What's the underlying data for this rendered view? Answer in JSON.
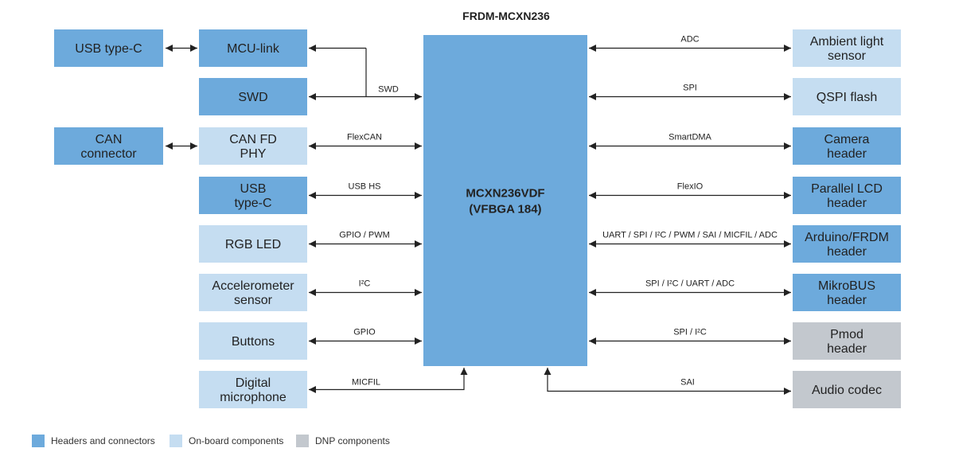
{
  "title": "FRDM-MCXN236",
  "colors": {
    "header": "#6DAADC",
    "onboard": "#C5DDF1",
    "dnp": "#C3C8CE",
    "chip": "#6DAADC"
  },
  "chip": {
    "lines": [
      "MCXN236VDF",
      "(VFBGA 184)"
    ]
  },
  "outer_left": [
    {
      "lines": [
        "USB type-C"
      ],
      "kind": "header",
      "row": 0
    },
    {
      "lines": [
        "CAN",
        "connector"
      ],
      "kind": "header",
      "row": 2
    }
  ],
  "left": [
    {
      "lines": [
        "MCU-link"
      ],
      "kind": "header",
      "bus": ""
    },
    {
      "lines": [
        "SWD"
      ],
      "kind": "header",
      "bus": "SWD"
    },
    {
      "lines": [
        "CAN FD",
        "PHY"
      ],
      "kind": "onboard",
      "bus": "FlexCAN"
    },
    {
      "lines": [
        "USB",
        "type-C"
      ],
      "kind": "header",
      "bus": "USB HS"
    },
    {
      "lines": [
        "RGB LED"
      ],
      "kind": "onboard",
      "bus": "GPIO / PWM"
    },
    {
      "lines": [
        "Accelerometer",
        "sensor"
      ],
      "kind": "onboard",
      "bus": "I²C"
    },
    {
      "lines": [
        "Buttons"
      ],
      "kind": "onboard",
      "bus": "GPIO"
    },
    {
      "lines": [
        "Digital",
        "microphone"
      ],
      "kind": "onboard",
      "bus": "MICFIL"
    }
  ],
  "right": [
    {
      "lines": [
        "Ambient light",
        "sensor"
      ],
      "kind": "onboard",
      "bus": "ADC"
    },
    {
      "lines": [
        "QSPI flash"
      ],
      "kind": "onboard",
      "bus": "SPI"
    },
    {
      "lines": [
        "Camera",
        "header"
      ],
      "kind": "header",
      "bus": "SmartDMA"
    },
    {
      "lines": [
        "Parallel LCD",
        "header"
      ],
      "kind": "header",
      "bus": "FlexIO"
    },
    {
      "lines": [
        "Arduino/FRDM",
        "header"
      ],
      "kind": "header",
      "bus": "UART / SPI / I²C / PWM / SAI / MICFIL / ADC"
    },
    {
      "lines": [
        "MikroBUS",
        "header"
      ],
      "kind": "header",
      "bus": "SPI / I²C / UART / ADC"
    },
    {
      "lines": [
        "Pmod",
        "header"
      ],
      "kind": "dnp",
      "bus": "SPI / I²C"
    },
    {
      "lines": [
        "Audio codec"
      ],
      "kind": "dnp",
      "bus": "SAI"
    }
  ],
  "legend": [
    {
      "label": "Headers and connectors",
      "kind": "header"
    },
    {
      "label": "On-board components",
      "kind": "onboard"
    },
    {
      "label": "DNP components",
      "kind": "dnp"
    }
  ]
}
